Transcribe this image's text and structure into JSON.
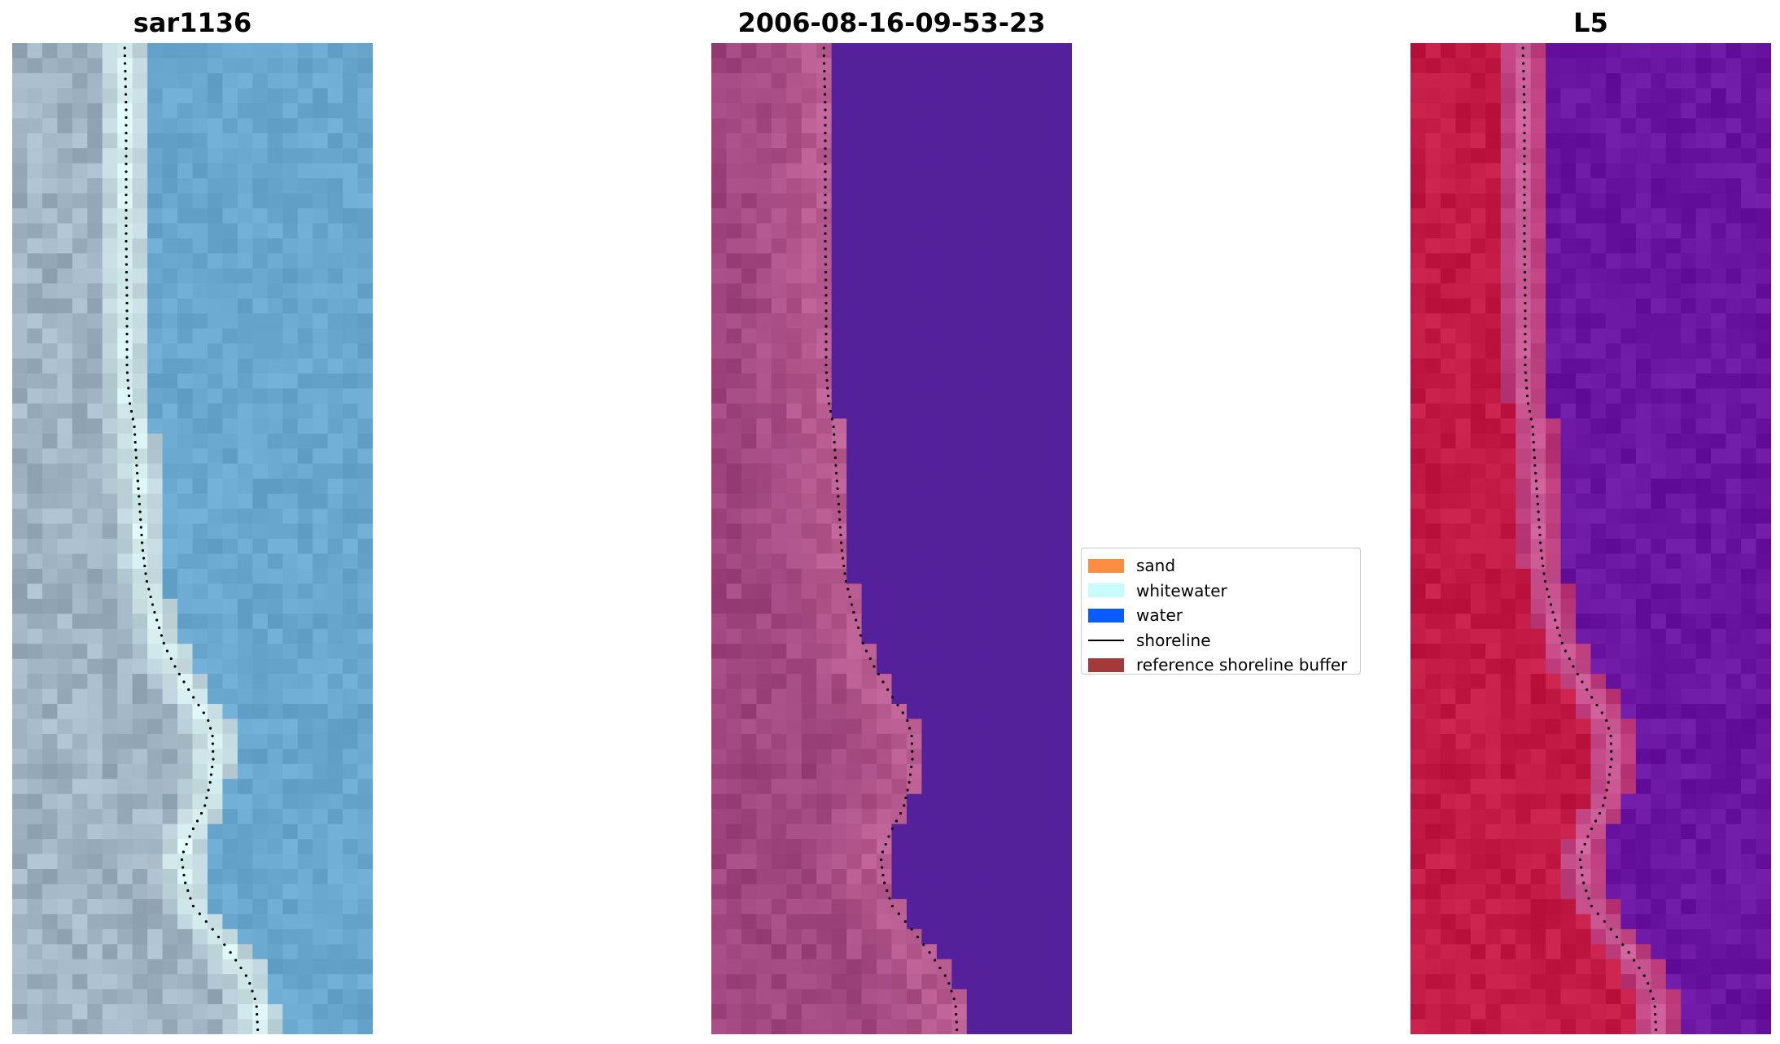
{
  "titles": {
    "rgb": "sar1136",
    "classification": "2006-08-16-09-53-23",
    "index": "L5"
  },
  "legend": {
    "items": [
      {
        "label": "sand",
        "kind": "patch",
        "color": "#ff8c42"
      },
      {
        "label": "whitewater",
        "kind": "patch",
        "color": "#c8fcfc"
      },
      {
        "label": "water",
        "kind": "patch",
        "color": "#0b5cff"
      },
      {
        "label": "shoreline",
        "kind": "line",
        "color": "#000000"
      },
      {
        "label": "reference shoreline buffer",
        "kind": "patch",
        "color": "#a33a3a"
      }
    ]
  },
  "colors": {
    "rgb_water": "#6aa7cf",
    "rgb_land": "#9fb3c2",
    "rgb_whitewater": "#dff7f5",
    "classification_water": "#55219b",
    "classification_land": "#a0467f",
    "index_land": "#c21a45",
    "index_water": "#6a15a1",
    "shoreline": "#000000"
  }
}
